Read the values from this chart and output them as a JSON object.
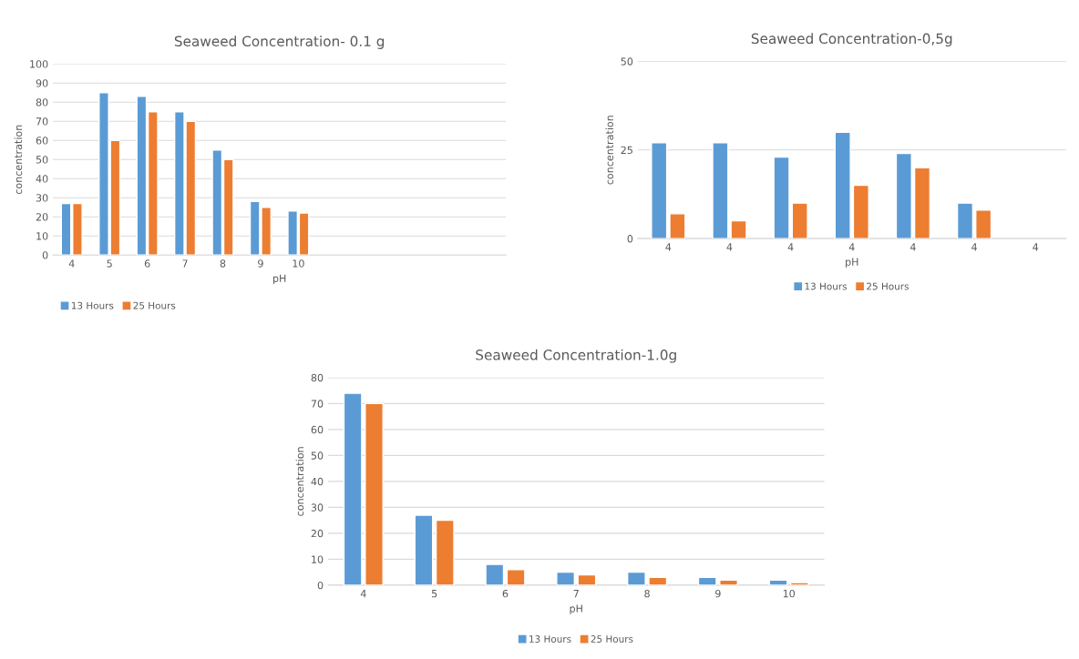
{
  "chart_data": [
    {
      "type": "bar",
      "title": "Seaweed Concentration- 0.1 g",
      "xlabel": "pH",
      "ylabel": "concentration",
      "categories": [
        "4",
        "5",
        "6",
        "7",
        "8",
        "9",
        "10",
        null,
        null,
        null,
        null,
        null
      ],
      "series": [
        {
          "name": "13 Hours",
          "color": "#5b9bd5",
          "values": [
            27,
            85,
            83,
            75,
            55,
            28,
            23,
            null,
            null,
            null,
            null,
            null
          ]
        },
        {
          "name": "25 Hours",
          "color": "#ed7d31",
          "values": [
            27,
            60,
            75,
            70,
            50,
            25,
            22,
            null,
            null,
            null,
            null,
            null
          ]
        }
      ],
      "ylim": [
        0,
        100
      ],
      "yticks": [
        0,
        10,
        20,
        30,
        40,
        50,
        60,
        70,
        80,
        90,
        100
      ],
      "grid": "y",
      "legend": "bottom left"
    },
    {
      "type": "bar",
      "title": "Seaweed Concentration-0,5g",
      "xlabel": "pH",
      "ylabel": "concentration",
      "categories": [
        "4",
        "4",
        "4",
        "4",
        "4",
        "4",
        "4"
      ],
      "series": [
        {
          "name": "13 Hours",
          "color": "#5b9bd5",
          "values": [
            27,
            27,
            23,
            30,
            24,
            10,
            null
          ]
        },
        {
          "name": "25 Hours",
          "color": "#ed7d31",
          "values": [
            7,
            5,
            10,
            15,
            20,
            8,
            null
          ]
        }
      ],
      "ylim": [
        0,
        50
      ],
      "yticks": [
        0,
        25,
        50
      ],
      "grid": "y",
      "legend": "bottom"
    },
    {
      "type": "bar",
      "title": "Seaweed Concentration-1.0g",
      "xlabel": "pH",
      "ylabel": "concentration",
      "categories": [
        "4",
        "5",
        "6",
        "7",
        "8",
        "9",
        "10"
      ],
      "series": [
        {
          "name": "13 Hours",
          "color": "#5b9bd5",
          "values": [
            74,
            27,
            8,
            5,
            5,
            3,
            2
          ]
        },
        {
          "name": "25 Hours",
          "color": "#ed7d31",
          "values": [
            70,
            25,
            6,
            4,
            3,
            2,
            1
          ]
        }
      ],
      "ylim": [
        0,
        80
      ],
      "yticks": [
        0,
        10,
        20,
        30,
        40,
        50,
        60,
        70,
        80
      ],
      "grid": "y",
      "legend": "bottom"
    }
  ]
}
